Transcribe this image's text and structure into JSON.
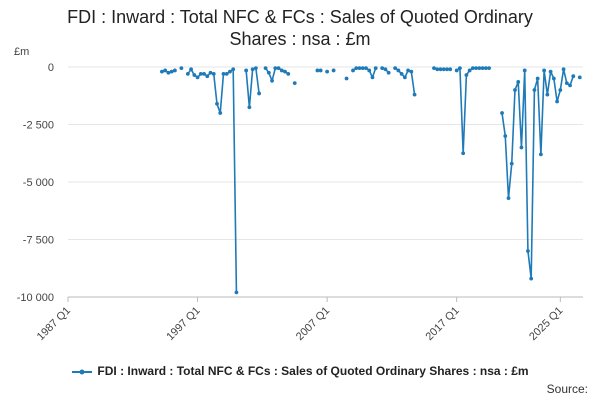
{
  "chart_data": {
    "type": "line",
    "title_line1": "FDI : Inward : Total NFC & FCs : Sales of Quoted Ordinary",
    "title_line2": "Shares : nsa : £m",
    "ylabel": "£m",
    "legend_label": "FDI : Inward : Total NFC & FCs : Sales of Quoted Ordinary Shares : nsa : £m",
    "source_label": "Source:",
    "series_color": "#1f7ab8",
    "grid": true,
    "ylim": [
      -10000,
      0
    ],
    "y_ticks": [
      0,
      -2500,
      -5000,
      -7500,
      -10000
    ],
    "y_tick_labels": [
      "0",
      "-2 500",
      "-5 000",
      "-7 500",
      "-10 000"
    ],
    "x_ticks": [
      1987,
      1997,
      2007,
      2017,
      2025
    ],
    "x_tick_labels": [
      "1987 Q1",
      "1997 Q1",
      "2007 Q1",
      "2017 Q1",
      "2025 Q1"
    ],
    "series": [
      {
        "values": [
          [
            1994.25,
            -200
          ],
          [
            1994.5,
            -150
          ],
          [
            1994.75,
            -250
          ],
          [
            1995.0,
            -200
          ],
          [
            1995.25,
            -150
          ],
          [
            1995.5,
            null
          ],
          [
            1995.75,
            -50
          ],
          [
            1996.0,
            null
          ],
          [
            1996.25,
            -300
          ],
          [
            1996.5,
            -100
          ],
          [
            1996.75,
            -350
          ],
          [
            1997.0,
            -450
          ],
          [
            1997.25,
            -300
          ],
          [
            1997.5,
            -300
          ],
          [
            1997.75,
            -400
          ],
          [
            1998.0,
            -250
          ],
          [
            1998.25,
            -300
          ],
          [
            1998.5,
            -1600
          ],
          [
            1998.75,
            -2000
          ],
          [
            1999.0,
            -300
          ],
          [
            1999.25,
            -300
          ],
          [
            1999.5,
            -200
          ],
          [
            1999.75,
            -100
          ],
          [
            2000.0,
            -9800
          ],
          [
            2000.25,
            null
          ],
          [
            2000.5,
            null
          ],
          [
            2000.75,
            -150
          ],
          [
            2001.0,
            -1750
          ],
          [
            2001.25,
            -100
          ],
          [
            2001.5,
            -50
          ],
          [
            2001.75,
            -1150
          ],
          [
            2002.0,
            null
          ],
          [
            2002.25,
            -50
          ],
          [
            2002.5,
            -250
          ],
          [
            2002.75,
            -600
          ],
          [
            2003.0,
            -50
          ],
          [
            2003.25,
            -50
          ],
          [
            2003.5,
            -150
          ],
          [
            2003.75,
            -200
          ],
          [
            2004.0,
            -300
          ],
          [
            2004.25,
            null
          ],
          [
            2004.5,
            -700
          ],
          [
            2004.75,
            null
          ],
          [
            2006.25,
            -150
          ],
          [
            2006.5,
            -150
          ],
          [
            2006.75,
            null
          ],
          [
            2007.0,
            -200
          ],
          [
            2007.25,
            null
          ],
          [
            2007.5,
            -150
          ],
          [
            2007.75,
            null
          ],
          [
            2008.5,
            -500
          ],
          [
            2008.75,
            null
          ],
          [
            2009.0,
            -150
          ],
          [
            2009.25,
            -50
          ],
          [
            2009.5,
            -50
          ],
          [
            2009.75,
            -50
          ],
          [
            2010.0,
            -50
          ],
          [
            2010.25,
            -150
          ],
          [
            2010.5,
            -450
          ],
          [
            2010.75,
            -50
          ],
          [
            2011.0,
            null
          ],
          [
            2011.25,
            -50
          ],
          [
            2011.5,
            -100
          ],
          [
            2011.75,
            -250
          ],
          [
            2012.0,
            null
          ],
          [
            2012.25,
            -50
          ],
          [
            2012.5,
            -150
          ],
          [
            2012.75,
            -300
          ],
          [
            2013.0,
            -450
          ],
          [
            2013.25,
            -150
          ],
          [
            2013.5,
            -200
          ],
          [
            2013.75,
            -1200
          ],
          [
            2014.0,
            null
          ],
          [
            2015.25,
            -50
          ],
          [
            2015.5,
            -100
          ],
          [
            2015.75,
            -100
          ],
          [
            2016.0,
            -100
          ],
          [
            2016.25,
            -100
          ],
          [
            2016.5,
            -100
          ],
          [
            2016.75,
            null
          ],
          [
            2017.0,
            -150
          ],
          [
            2017.25,
            -50
          ],
          [
            2017.5,
            -3750
          ],
          [
            2017.75,
            -350
          ],
          [
            2018.0,
            -150
          ],
          [
            2018.25,
            -50
          ],
          [
            2018.5,
            -50
          ],
          [
            2018.75,
            -50
          ],
          [
            2019.0,
            -50
          ],
          [
            2019.25,
            -50
          ],
          [
            2019.5,
            -50
          ],
          [
            2019.75,
            null
          ],
          [
            2020.5,
            -2000
          ],
          [
            2020.75,
            -3000
          ],
          [
            2021.0,
            -5700
          ],
          [
            2021.25,
            -4200
          ],
          [
            2021.5,
            -1000
          ],
          [
            2021.75,
            -650
          ],
          [
            2022.0,
            -3500
          ],
          [
            2022.25,
            -150
          ],
          [
            2022.5,
            -8000
          ],
          [
            2022.75,
            -9200
          ],
          [
            2023.0,
            -1000
          ],
          [
            2023.25,
            -500
          ],
          [
            2023.5,
            -3800
          ],
          [
            2023.75,
            -150
          ],
          [
            2024.0,
            -1200
          ],
          [
            2024.25,
            -200
          ],
          [
            2024.5,
            -500
          ],
          [
            2024.75,
            -1500
          ],
          [
            2025.0,
            -1000
          ],
          [
            2025.25,
            -100
          ],
          [
            2025.5,
            -700
          ],
          [
            2025.75,
            -800
          ],
          [
            2026.0,
            -400
          ],
          [
            2026.25,
            null
          ],
          [
            2026.5,
            -450
          ]
        ]
      }
    ]
  }
}
